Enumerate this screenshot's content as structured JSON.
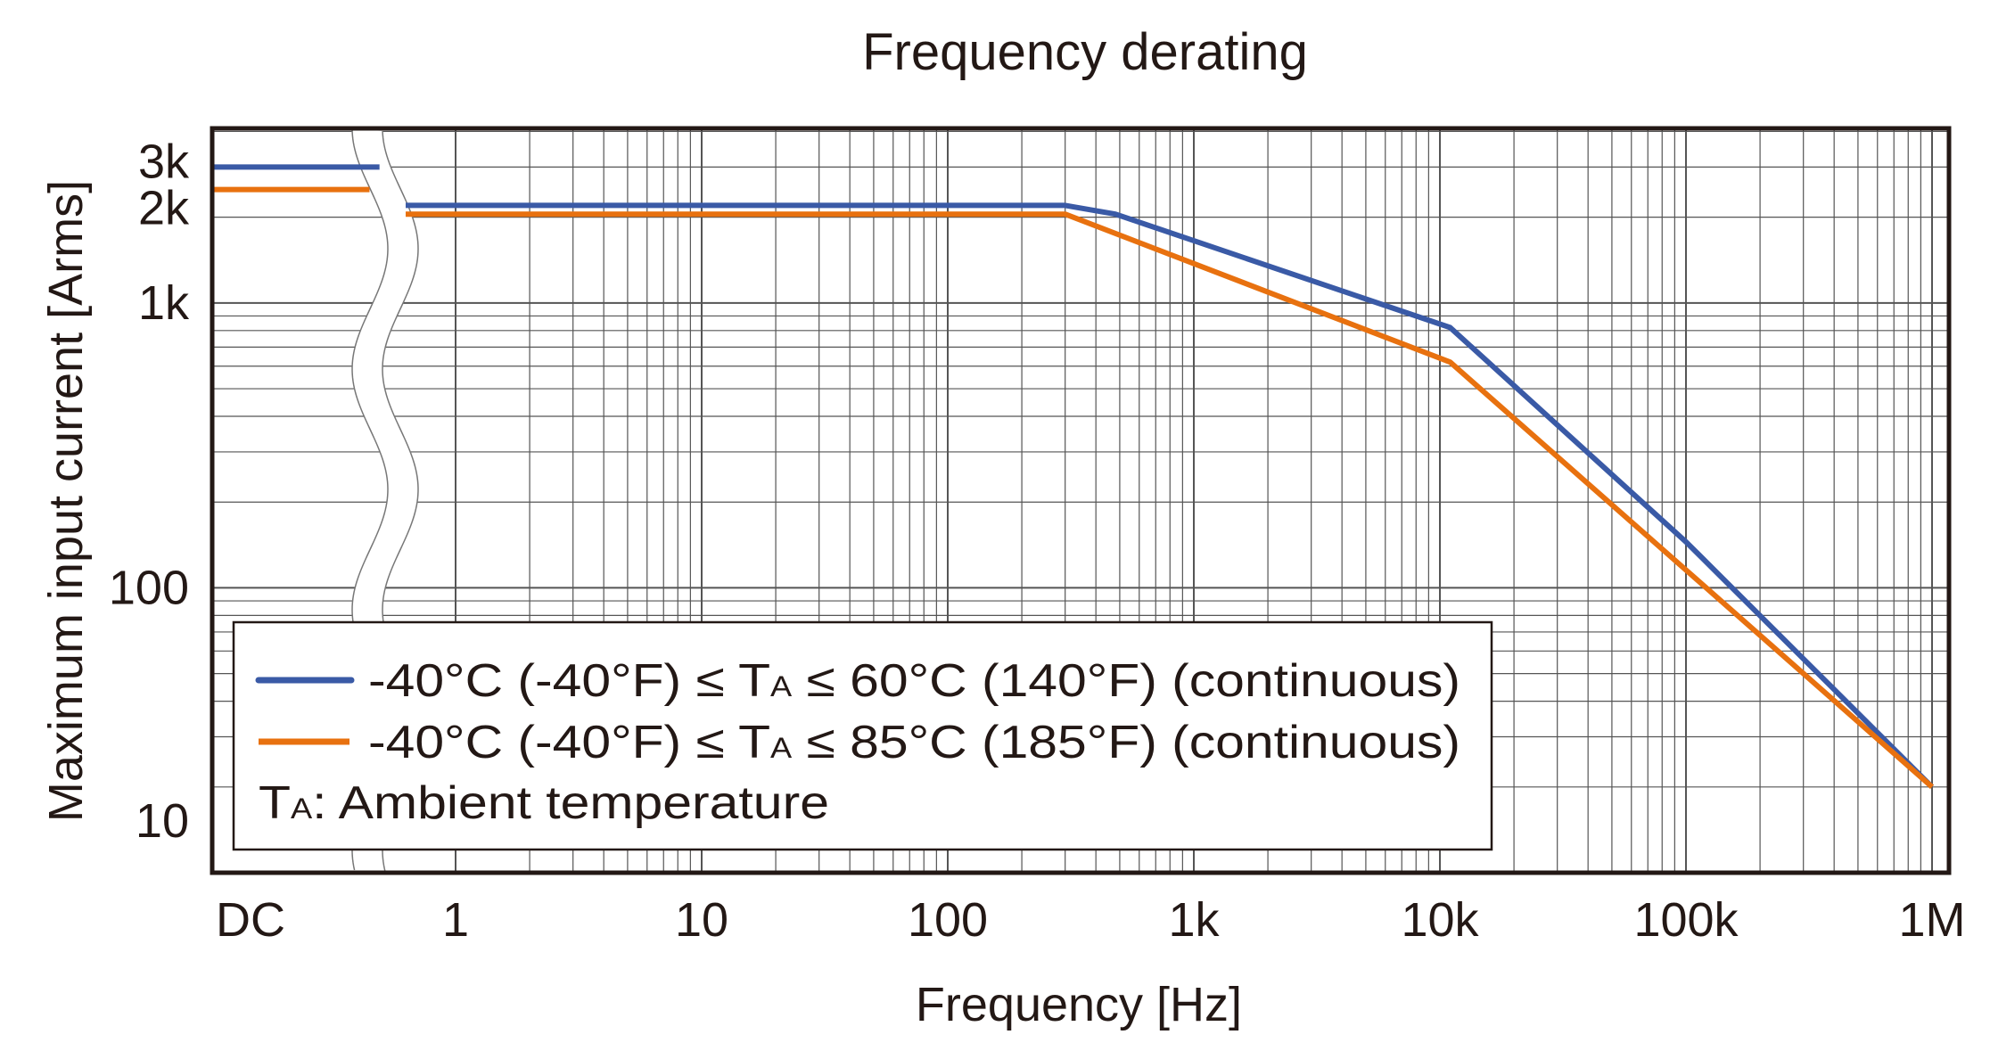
{
  "chart_data": {
    "type": "line",
    "title": "Frequency derating",
    "xlabel": "Frequency [Hz]",
    "ylabel": "Maximum input current [Arms]",
    "x_scale": "log",
    "y_scale": "log",
    "x_break": "DC, then axis break before 1 Hz",
    "xlim": [
      0.7,
      1100000
    ],
    "ylim": [
      10,
      4100
    ],
    "grid": true,
    "x_ticks": [
      {
        "label": "DC",
        "value": "DC"
      },
      {
        "label": "1",
        "value": 1
      },
      {
        "label": "10",
        "value": 10
      },
      {
        "label": "100",
        "value": 100
      },
      {
        "label": "1k",
        "value": 1000
      },
      {
        "label": "10k",
        "value": 10000
      },
      {
        "label": "100k",
        "value": 100000
      },
      {
        "label": "1M",
        "value": 1000000
      }
    ],
    "y_ticks": [
      {
        "label": "3k",
        "value": 3000
      },
      {
        "label": "2k",
        "value": 2000
      },
      {
        "label": "1k",
        "value": 1000
      },
      {
        "label": "100",
        "value": 100
      },
      {
        "label": "10",
        "value": 10
      }
    ],
    "legend_position": "bottom-left",
    "series": [
      {
        "name": "-40°C (-40°F) ≤ TA ≤ 60°C (140°F) (continuous)",
        "color": "#3a5aa6",
        "dc_value": 3000,
        "x": [
          0.7,
          300,
          480,
          11000,
          100000,
          1000000
        ],
        "y": [
          2200,
          2200,
          2050,
          820,
          145,
          20
        ]
      },
      {
        "name": "-40°C (-40°F) ≤ TA ≤ 85°C (185°F) (continuous)",
        "color": "#e8710f",
        "dc_value": 2500,
        "x": [
          0.7,
          300,
          11000,
          1000000
        ],
        "y": [
          2050,
          2050,
          620,
          20
        ]
      }
    ],
    "legend": {
      "line1_pre": "-40°C (-40°F) ≤ T",
      "line1_sub": "A",
      "line1_post": " ≤ 60°C (140°F) (continuous)",
      "line2_pre": "-40°C (-40°F) ≤ T",
      "line2_sub": "A",
      "line2_post": " ≤ 85°C (185°F) (continuous)",
      "note_pre": "T",
      "note_sub": "A",
      "note_post": ": Ambient temperature"
    }
  }
}
